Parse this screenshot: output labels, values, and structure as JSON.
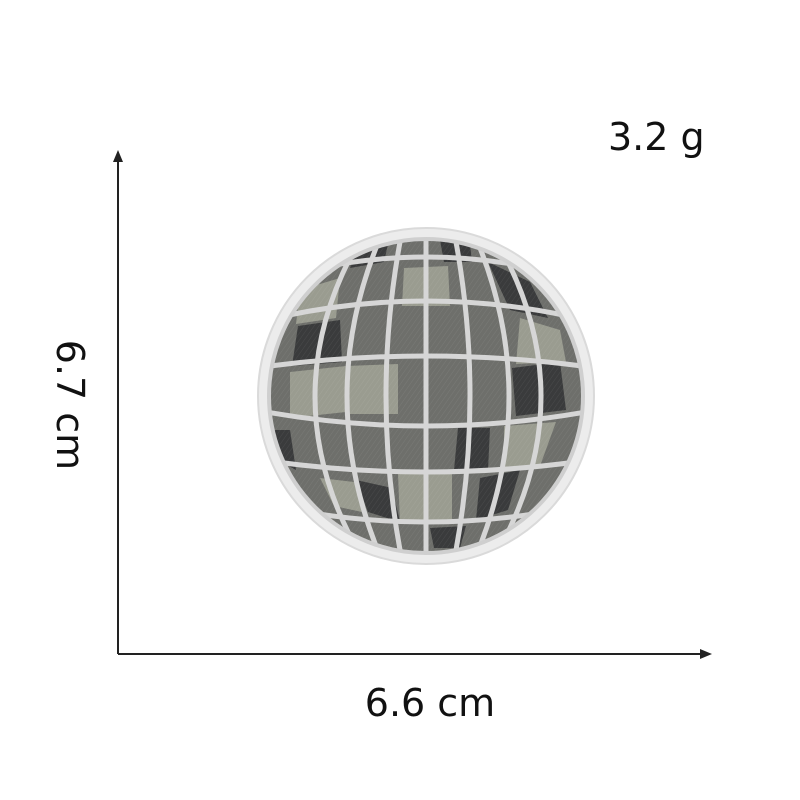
{
  "product": {
    "name": "disco-ball-embroidered-patch",
    "colors": {
      "border": "#ececec",
      "stitch_lines": "#d6d6d6",
      "body": "#6e6f6b",
      "dark_tile": "#3a3b3c",
      "light_tile": "#9a9c90"
    }
  },
  "dimensions": {
    "weight": "3.2 g",
    "width": "6.6 cm",
    "height": "6.7 cm",
    "axis_color": "#222222"
  }
}
